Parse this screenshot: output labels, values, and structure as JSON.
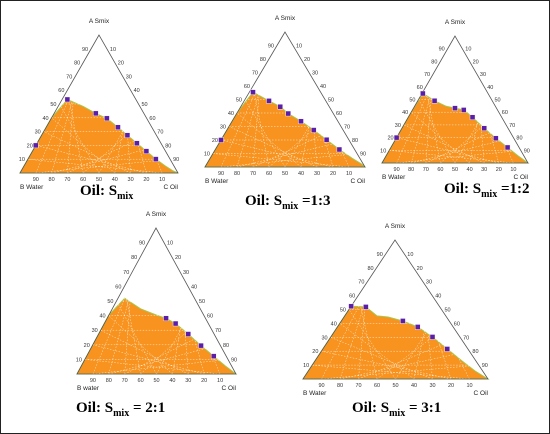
{
  "chart_data": [
    {
      "type": "ternary",
      "caption": {
        "lead": "Oil: S",
        "sub": "mix",
        "tail": ""
      },
      "vertex_labels": {
        "top": "A Smix",
        "left": "B Water",
        "right": "C Oil"
      },
      "ticks": [
        "10",
        "20",
        "30",
        "40",
        "50",
        "60",
        "70",
        "80",
        "90"
      ],
      "grid": true,
      "region_color": "#F7931E",
      "marker_color": "#5A1FA6",
      "boundary": [
        [
          0,
          1
        ],
        [
          10,
          0.92
        ],
        [
          20,
          0.84
        ],
        [
          30,
          0.74
        ],
        [
          40,
          0.67
        ],
        [
          48,
          0.6
        ],
        [
          55,
          0.55
        ],
        [
          62,
          0.46
        ],
        [
          68,
          0.38
        ],
        [
          74,
          0.3
        ],
        [
          80,
          0.22
        ],
        [
          86,
          0.14
        ],
        [
          92,
          0.07
        ],
        [
          97,
          0.02
        ],
        [
          100,
          0
        ]
      ],
      "markers": [
        [
          10,
          0.92
        ],
        [
          30,
          0.74
        ],
        [
          48,
          0.6
        ],
        [
          55,
          0.55
        ],
        [
          62,
          0.46
        ],
        [
          68,
          0.38
        ],
        [
          74,
          0.3
        ],
        [
          80,
          0.22
        ],
        [
          86,
          0.14
        ]
      ]
    },
    {
      "type": "ternary",
      "caption": {
        "lead": "Oil: S",
        "sub": "mix",
        "tail": " =1:3"
      },
      "vertex_labels": {
        "top": "A Smix",
        "left": "B Water",
        "right": "C Oil"
      },
      "ticks": [
        "10",
        "20",
        "30",
        "40",
        "50",
        "60",
        "70",
        "80",
        "90"
      ],
      "grid": true,
      "region_color": "#F7931E",
      "marker_color": "#5A1FA6",
      "boundary": [
        [
          0,
          1
        ],
        [
          10,
          0.93
        ],
        [
          20,
          0.85
        ],
        [
          30,
          0.77
        ],
        [
          40,
          0.68
        ],
        [
          47,
          0.62
        ],
        [
          52,
          0.55
        ],
        [
          60,
          0.47
        ],
        [
          68,
          0.38
        ],
        [
          76,
          0.28
        ],
        [
          84,
          0.18
        ],
        [
          92,
          0.09
        ],
        [
          98,
          0.03
        ],
        [
          100,
          0
        ]
      ],
      "markers": [
        [
          10,
          0.93
        ],
        [
          30,
          0.77
        ],
        [
          40,
          0.68
        ],
        [
          47,
          0.62
        ],
        [
          52,
          0.55
        ],
        [
          60,
          0.47
        ],
        [
          68,
          0.38
        ],
        [
          76,
          0.28
        ],
        [
          84,
          0.18
        ]
      ]
    },
    {
      "type": "ternary",
      "caption": {
        "lead": "Oil: S",
        "sub": "mix",
        "tail": " =1:2"
      },
      "vertex_labels": {
        "top": "A Smix",
        "left": "B Water",
        "right": "C Oil"
      },
      "ticks": [
        "10",
        "20",
        "30",
        "40",
        "50",
        "60",
        "70",
        "80",
        "90"
      ],
      "grid": true,
      "region_color": "#F7931E",
      "marker_color": "#5A1FA6",
      "boundary": [
        [
          0,
          1
        ],
        [
          10,
          0.93
        ],
        [
          20,
          0.85
        ],
        [
          28,
          0.76
        ],
        [
          36,
          0.68
        ],
        [
          44,
          0.62
        ],
        [
          50,
          0.6
        ],
        [
          56,
          0.58
        ],
        [
          62,
          0.5
        ],
        [
          70,
          0.38
        ],
        [
          78,
          0.27
        ],
        [
          86,
          0.17
        ],
        [
          93,
          0.08
        ],
        [
          100,
          0
        ]
      ],
      "markers": [
        [
          10,
          0.93
        ],
        [
          28,
          0.76
        ],
        [
          36,
          0.68
        ],
        [
          50,
          0.6
        ],
        [
          56,
          0.58
        ],
        [
          62,
          0.5
        ],
        [
          70,
          0.38
        ],
        [
          78,
          0.27
        ],
        [
          86,
          0.17
        ]
      ]
    },
    {
      "type": "ternary",
      "caption": {
        "lead": "Oil: S",
        "sub": "mix",
        "tail": " = 2:1"
      },
      "vertex_labels": {
        "top": "A Smix",
        "left": "B water",
        "right": "C Oil"
      },
      "ticks": [
        "10",
        "20",
        "30",
        "40",
        "50",
        "60",
        "70",
        "80",
        "90"
      ],
      "grid": true,
      "region_color": "#F7931E",
      "marker_color": "#5A1FA6",
      "boundary": [
        [
          0,
          1
        ],
        [
          10,
          0.92
        ],
        [
          20,
          0.82
        ],
        [
          30,
          0.72
        ],
        [
          40,
          0.62
        ],
        [
          50,
          0.56
        ],
        [
          56,
          0.53
        ],
        [
          62,
          0.48
        ],
        [
          70,
          0.38
        ],
        [
          78,
          0.27
        ],
        [
          86,
          0.17
        ],
        [
          93,
          0.08
        ],
        [
          100,
          0
        ]
      ],
      "markers": [
        [
          56,
          0.53
        ],
        [
          62,
          0.48
        ],
        [
          70,
          0.38
        ],
        [
          78,
          0.27
        ],
        [
          86,
          0.17
        ]
      ]
    },
    {
      "type": "ternary",
      "caption": {
        "lead": "Oil: S",
        "sub": "mix",
        "tail": " = 3:1"
      },
      "vertex_labels": {
        "top": "A Smix",
        "left": "B Water",
        "right": "C Oil"
      },
      "ticks": [
        "10",
        "20",
        "30",
        "40",
        "50",
        "60",
        "70",
        "80",
        "90"
      ],
      "grid": true,
      "region_color": "#F7931E",
      "marker_color": "#5A1FA6",
      "boundary": [
        [
          0,
          1
        ],
        [
          10,
          0.94
        ],
        [
          18,
          0.86
        ],
        [
          26,
          0.8
        ],
        [
          34,
          0.72
        ],
        [
          40,
          0.63
        ],
        [
          46,
          0.62
        ],
        [
          54,
          0.58
        ],
        [
          62,
          0.52
        ],
        [
          70,
          0.42
        ],
        [
          78,
          0.3
        ],
        [
          86,
          0.18
        ],
        [
          93,
          0.08
        ],
        [
          100,
          0
        ]
      ],
      "markers": [
        [
          26,
          0.8
        ],
        [
          34,
          0.72
        ],
        [
          54,
          0.58
        ],
        [
          62,
          0.52
        ],
        [
          70,
          0.42
        ],
        [
          78,
          0.3
        ]
      ]
    }
  ]
}
